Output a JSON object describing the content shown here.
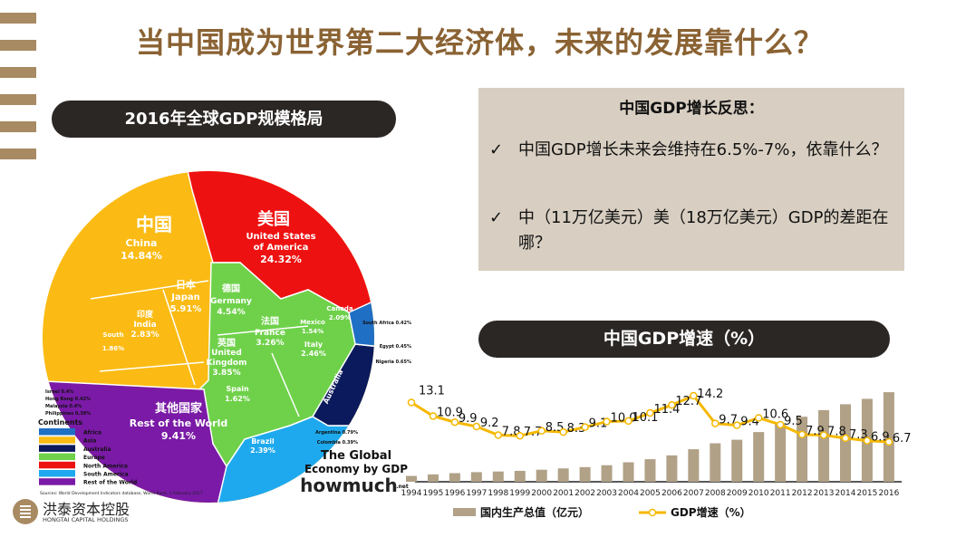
{
  "title": "当中国成为世界第二大经济体，未来的发展靠什么？",
  "left_pill": "2016年全球GDP规模格局",
  "infographic": {
    "regions": [
      {
        "zh": "中国",
        "en": "China",
        "pct": "14.84%"
      },
      {
        "zh": "美国",
        "en": "United States",
        "en2": "of America",
        "pct": "24.32%"
      },
      {
        "zh": "日本",
        "en": "Japan",
        "pct": "5.91%"
      },
      {
        "zh": "德国",
        "en": "Germany",
        "pct": "4.54%"
      },
      {
        "zh": "法国",
        "en": "France",
        "pct": "3.26%"
      },
      {
        "zh": "英国",
        "en": "United",
        "en2": "Kingdom",
        "pct": "3.85%"
      },
      {
        "zh": "印度",
        "en": "India",
        "pct": "2.83%"
      },
      {
        "zh": "意大利",
        "en": "Italy",
        "pct": "2.46%"
      },
      {
        "zh": "韩国",
        "en": "South",
        "en2": "Korea",
        "pct": "1.86%"
      },
      {
        "zh": "加拿大",
        "en": "Canada",
        "pct": "2.09%"
      },
      {
        "zh": "墨西哥",
        "en": "Mexico",
        "pct": "1.54%"
      },
      {
        "zh": "西班牙",
        "en": "Spain",
        "pct": "1.62%"
      },
      {
        "zh": "巴西",
        "en": "Brazil",
        "pct": "2.39%"
      },
      {
        "zh": "",
        "en": "Australia",
        "pct": "1.81%"
      },
      {
        "zh": "其他国家",
        "en": "Rest of the World",
        "pct": "9.41%"
      }
    ],
    "small": [
      "Indonesia 1.16%",
      "Turkey 0.97%",
      "Saudi Arabia 0.87%",
      "Netherlands 1.01%",
      "Switzerland 0.9%",
      "Russia 1.8%"
    ],
    "callouts_left": [
      "Israel 0.4%",
      "Hong Kong 0.42%",
      "Malaysia 0.4%",
      "Philippines 0.39%"
    ],
    "callouts_right": [
      "South Africa 0.42%",
      "Egypt 0.45%",
      "Nigeria 0.65%",
      "Argentina 0.79%",
      "Colombia 0.39%"
    ],
    "legend_title": "Continents",
    "legend": [
      {
        "label": "Africa",
        "color": "#1f6fc4"
      },
      {
        "label": "Asia",
        "color": "#fbbb14"
      },
      {
        "label": "Australia",
        "color": "#0b1a5c"
      },
      {
        "label": "Europe",
        "color": "#6fd14a"
      },
      {
        "label": "North America",
        "color": "#ee1111"
      },
      {
        "label": "South America",
        "color": "#1ea9ee"
      },
      {
        "label": "Rest of the World",
        "color": "#7a1aa6"
      }
    ],
    "source": "Sources: World Development Indicators database, World Bank, 1 February 2017",
    "brand1": "The Global",
    "brand2": "Economy by GDP",
    "brand3": "howmuch",
    "brand4": ".net"
  },
  "reflection": {
    "heading": "中国GDP增长反思：",
    "check": "✓",
    "items": [
      "中国GDP增长未来会维持在6.5%-7%，依靠什么？",
      "中（11万亿美元）美（18万亿美元）GDP的差距在哪？"
    ]
  },
  "chart_pill": "中国GDP增速（%）",
  "chart_data": {
    "type": "bar+line",
    "categories": [
      "1994",
      "1995",
      "1996",
      "1997",
      "1998",
      "1999",
      "2000",
      "2001",
      "2002",
      "2003",
      "2004",
      "2005",
      "2006",
      "2007",
      "2008",
      "2009",
      "2010",
      "2011",
      "2012",
      "2013",
      "2014",
      "2015",
      "2016"
    ],
    "series": [
      {
        "name": "国内生产总值（亿元）",
        "type": "bar",
        "color": "#b1a187",
        "values": [
          48638,
          61340,
          71814,
          79715,
          85196,
          90564,
          100280,
          110863,
          121717,
          137422,
          161840,
          187319,
          219439,
          270232,
          319516,
          349081,
          413030,
          489301,
          540367,
          595244,
          643974,
          689052,
          744127
        ]
      },
      {
        "name": "GDP增速（%）",
        "type": "line",
        "color": "#f5b800",
        "values": [
          13.1,
          10.9,
          9.9,
          9.2,
          7.8,
          7.7,
          8.5,
          8.3,
          9.1,
          10.0,
          10.1,
          11.4,
          12.7,
          14.2,
          9.7,
          9.4,
          10.6,
          9.5,
          7.9,
          7.8,
          7.3,
          6.9,
          6.7
        ],
        "labels": [
          "13.1",
          "10.9",
          "9.9",
          "9.2",
          "7.8",
          "7.7",
          "8.5",
          "8.3",
          "9.1",
          "10.0",
          "10.1",
          "11.4",
          "12.7",
          "14.2",
          "9.7",
          "9.4",
          "10.6",
          "9.5",
          "7.9",
          "7.8",
          "7.3",
          "6.9",
          "6.7"
        ]
      }
    ],
    "legend_placement": "bottom"
  },
  "company": {
    "name": "洪泰资本控股",
    "en": "HONGTAI CAPITAL HOLDINGS",
    "color": "#a88a63"
  }
}
